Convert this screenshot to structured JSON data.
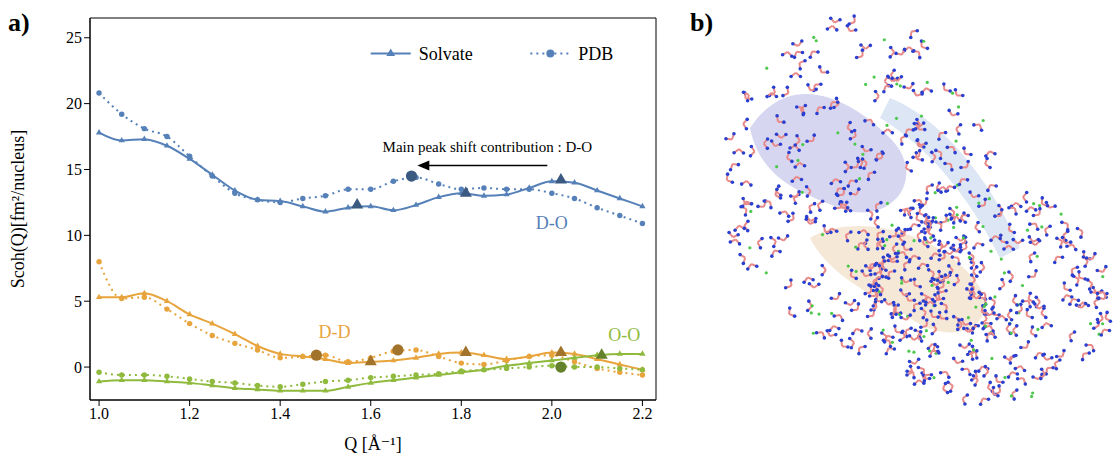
{
  "chart_data": {
    "type": "line",
    "panel_labels": [
      "a)",
      "b)"
    ],
    "xlabel": "Q [Å⁻¹]",
    "ylabel": "Scoh(Q)[fm²/nucleus]",
    "xlim": [
      0.98,
      2.23
    ],
    "ylim": [
      -2.5,
      26.5
    ],
    "xticks": [
      {
        "value": 1,
        "label": "1.0"
      },
      1.2,
      1.4,
      1.6,
      1.8,
      {
        "value": 2,
        "label": "2.0"
      },
      2.2
    ],
    "yticks": [
      0,
      5,
      10,
      15,
      20,
      25
    ],
    "legend": "upper right",
    "annotations": [
      {
        "text": "Main peak shift contribution : D-O"
      }
    ],
    "x": [
      1.0,
      1.05,
      1.1,
      1.15,
      1.2,
      1.25,
      1.3,
      1.35,
      1.4,
      1.45,
      1.5,
      1.55,
      1.6,
      1.65,
      1.7,
      1.75,
      1.8,
      1.85,
      1.9,
      1.95,
      2.0,
      2.05,
      2.1,
      2.15,
      2.2
    ],
    "series": [
      {
        "name": "Solvate",
        "label": "D-O",
        "color": "#5580b8",
        "line_style": "solid",
        "marker": "triangle",
        "values": [
          17.8,
          17.2,
          17.3,
          16.8,
          15.8,
          14.6,
          13.4,
          12.7,
          12.6,
          12.2,
          11.8,
          12.1,
          12.2,
          11.9,
          12.3,
          12.9,
          13.2,
          13.0,
          13.1,
          13.6,
          14.1,
          14.0,
          13.4,
          12.8,
          12.2
        ],
        "peaks": {
          "x": [
            1.57,
            1.81,
            2.02
          ],
          "values": [
            12.3,
            13.2,
            14.2
          ]
        }
      },
      {
        "name": "PDB",
        "label": "D-O",
        "color": "#5580b8",
        "line_style": "dotted",
        "marker": "circle",
        "values": [
          20.8,
          19.2,
          18.1,
          17.5,
          16.0,
          14.5,
          13.2,
          12.7,
          12.5,
          12.8,
          13.0,
          13.5,
          13.5,
          14.1,
          14.4,
          13.9,
          13.5,
          13.6,
          13.5,
          13.5,
          13.2,
          12.8,
          12.1,
          11.5,
          10.9
        ],
        "peaks": {
          "x": [
            1.69
          ],
          "values": [
            14.5
          ]
        }
      },
      {
        "name": "Solvate",
        "label": "D-D",
        "color": "#e8a43c",
        "line_style": "solid",
        "marker": "triangle",
        "values": [
          5.3,
          5.3,
          5.6,
          5.0,
          4.0,
          3.3,
          2.5,
          1.6,
          1.0,
          0.8,
          0.6,
          0.3,
          0.4,
          0.5,
          0.7,
          1.0,
          1.1,
          0.9,
          0.6,
          0.8,
          1.1,
          1.0,
          0.6,
          0.2,
          -0.2
        ],
        "peaks": {
          "x": [
            1.6,
            1.81,
            2.02
          ],
          "values": [
            0.4,
            1.1,
            1.1
          ]
        }
      },
      {
        "name": "PDB",
        "label": "D-D",
        "color": "#e8a43c",
        "line_style": "dotted",
        "marker": "circle",
        "values": [
          8.0,
          5.2,
          5.3,
          4.4,
          3.3,
          2.4,
          1.8,
          1.3,
          0.7,
          0.8,
          0.9,
          0.4,
          0.7,
          1.2,
          1.3,
          0.8,
          0.3,
          0.2,
          0.5,
          0.8,
          0.9,
          0.4,
          -0.1,
          -0.4,
          -0.6
        ],
        "peaks": {
          "x": [
            1.48,
            1.66
          ],
          "values": [
            0.9,
            1.3
          ]
        }
      },
      {
        "name": "Solvate",
        "label": "O-O",
        "color": "#8fba3e",
        "line_style": "solid",
        "marker": "triangle",
        "values": [
          -1.1,
          -1.0,
          -1.0,
          -1.1,
          -1.2,
          -1.4,
          -1.6,
          -1.7,
          -1.8,
          -1.8,
          -1.8,
          -1.5,
          -1.2,
          -1.0,
          -0.8,
          -0.6,
          -0.4,
          -0.2,
          0.1,
          0.3,
          0.5,
          0.7,
          0.9,
          1.0,
          1.0
        ],
        "peaks": {
          "x": [
            2.11
          ],
          "values": [
            0.9
          ]
        }
      },
      {
        "name": "PDB",
        "label": "O-O",
        "color": "#8fba3e",
        "line_style": "dotted",
        "marker": "circle",
        "values": [
          -0.4,
          -0.6,
          -0.6,
          -0.7,
          -0.9,
          -1.1,
          -1.2,
          -1.4,
          -1.5,
          -1.3,
          -1.1,
          -1.0,
          -0.8,
          -0.7,
          -0.6,
          -0.5,
          -0.3,
          -0.2,
          -0.1,
          0.0,
          0.1,
          0.0,
          0.0,
          -0.1,
          -0.2
        ],
        "peaks": {
          "x": [
            2.02
          ],
          "values": [
            0.0
          ]
        }
      }
    ]
  }
}
